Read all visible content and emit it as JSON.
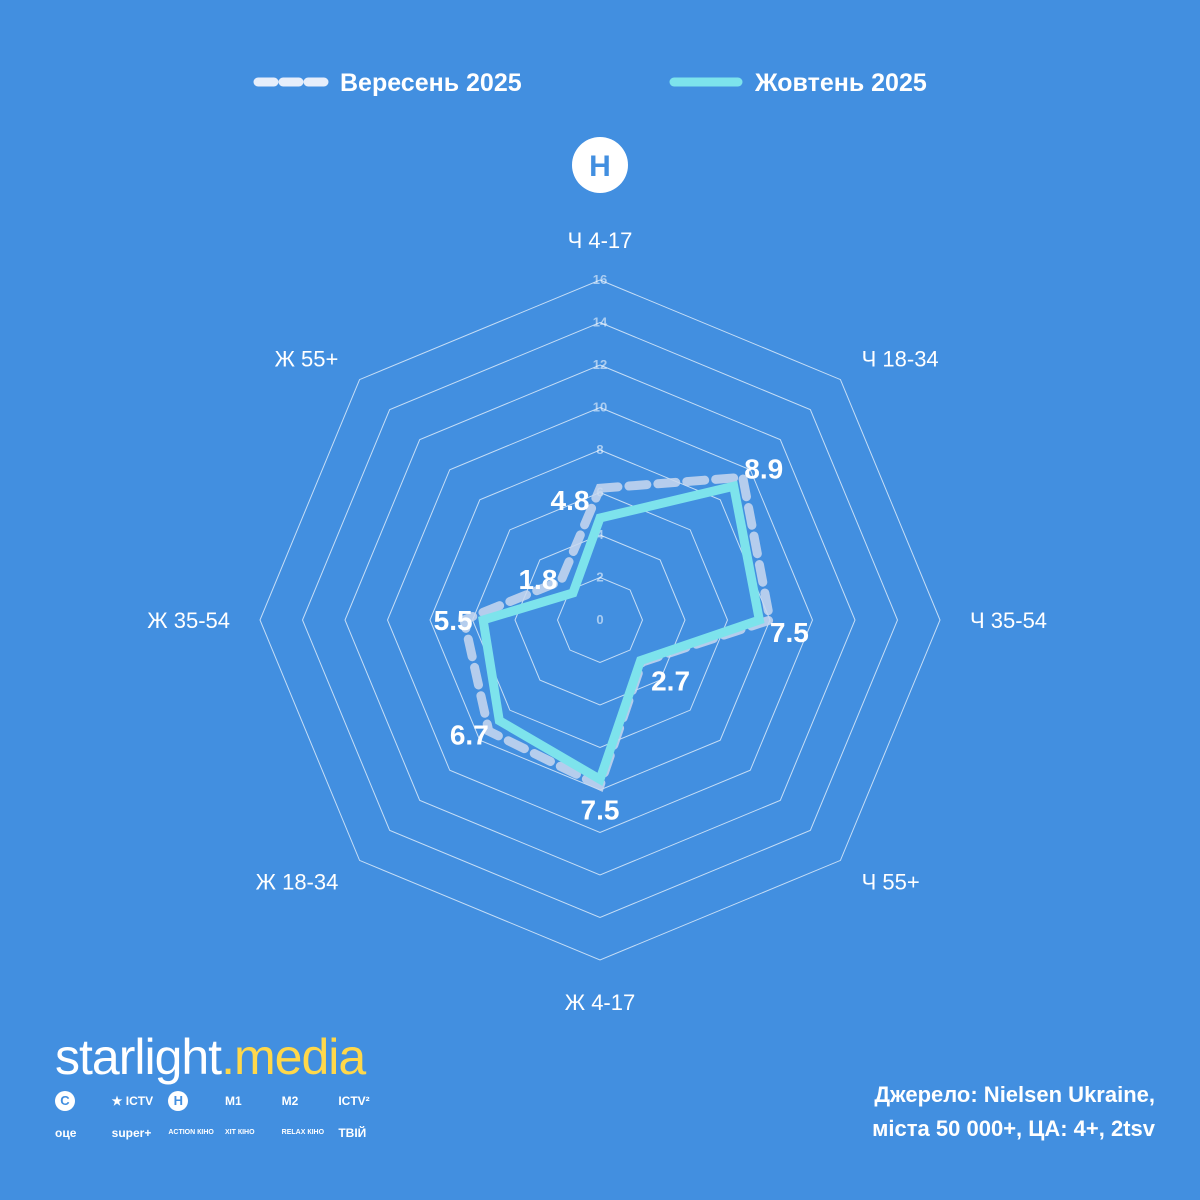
{
  "chart_data": {
    "type": "radar",
    "axes": [
      "Ч 4-17",
      "Ч 18-34",
      "Ч 35-54",
      "Ч 55+",
      "Ж 4-17",
      "Ж 18-34",
      "Ж 35-54",
      "Ж 55+"
    ],
    "rlim": [
      0,
      16
    ],
    "ticks": [
      "0",
      "2",
      "4",
      "6",
      "8",
      "10",
      "12",
      "14",
      "16"
    ],
    "tick_values": [
      0,
      2,
      4,
      6,
      8,
      10,
      12,
      14,
      16
    ],
    "series": [
      {
        "name": "Вересень 2025",
        "values": [
          6.2,
          9.5,
          8.0,
          2.8,
          7.8,
          7.4,
          6.4,
          2.6
        ],
        "style": "dashed",
        "color": "#c9d8ee"
      },
      {
        "name": "Жовтень 2025",
        "values": [
          4.8,
          8.9,
          7.5,
          2.7,
          7.5,
          6.7,
          5.5,
          1.8
        ],
        "style": "solid",
        "color": "#7de3ec"
      }
    ],
    "data_labels": [
      "4.8",
      "8.9",
      "7.5",
      "2.7",
      "7.5",
      "6.7",
      "5.5",
      "1.8"
    ],
    "legend_position": "top",
    "grid": true
  },
  "logo_letter": "Н",
  "brand": {
    "name_part1": "starlight",
    "dot": ".",
    "name_part2": "media"
  },
  "channels": [
    {
      "icon": "c-circle-icon",
      "text": "C"
    },
    {
      "icon": "star-icon",
      "text": "★ ICTV"
    },
    {
      "icon": "n-circle-icon",
      "text": "Н"
    },
    {
      "icon": "m1-icon",
      "text": "M1"
    },
    {
      "icon": "m2-icon",
      "text": "M2"
    },
    {
      "icon": "ictv2-icon",
      "text": "ICTV²"
    },
    {
      "icon": "oce-icon",
      "text": "оце"
    },
    {
      "icon": "superplus-icon",
      "text": "super+"
    },
    {
      "icon": "action-kino-icon",
      "text": "ACTION КІНО"
    },
    {
      "icon": "hit-kino-icon",
      "text": "ХІТ КІНО"
    },
    {
      "icon": "relax-kino-icon",
      "text": "RELAX КІНО"
    },
    {
      "icon": "tviy-icon",
      "text": "ТВІЙ"
    }
  ],
  "source": {
    "line1": "Джерело: Nielsen Ukraine,",
    "line2": "міста 50 000+, ЦА: 4+, 2tsv"
  },
  "colors": {
    "background": "#428fe0",
    "grid": "#ffffff",
    "october": "#7de3ec",
    "september": "#c9d8ee",
    "brand_accent": "#ffd84a"
  }
}
